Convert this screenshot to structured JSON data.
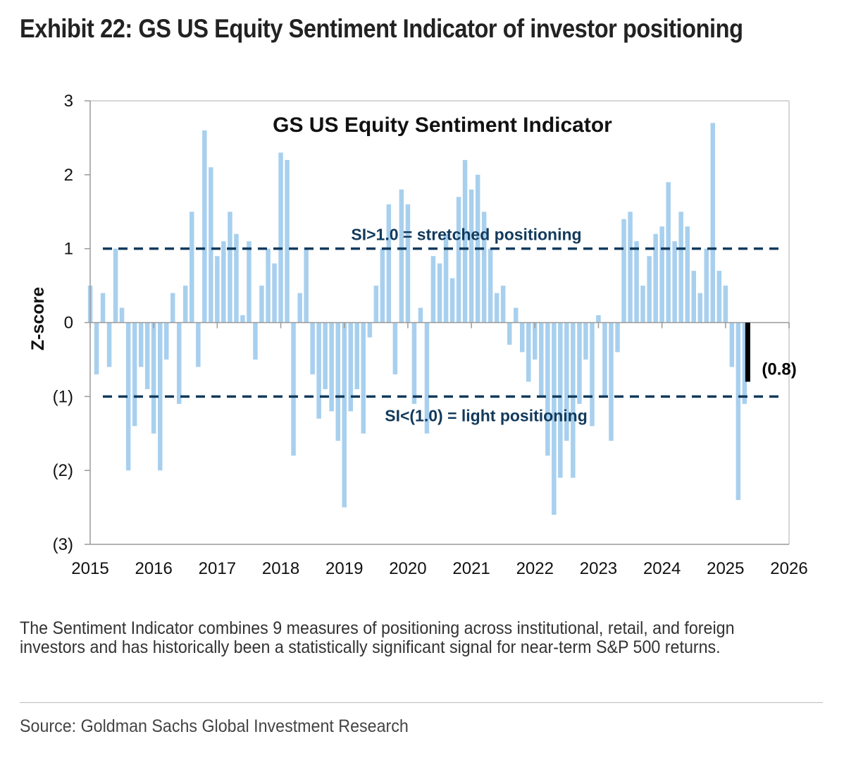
{
  "exhibit": {
    "title": "Exhibit 22: GS US Equity Sentiment Indicator of investor positioning",
    "footnote": "The Sentiment Indicator combines 9 measures of positioning across institutional, retail, and foreign investors and has historically been a statistically significant signal for near-term S&P 500 returns.",
    "source": "Source: Goldman Sachs Global Investment Research"
  },
  "chart_data": {
    "type": "bar",
    "title": "GS US Equity Sentiment Indicator",
    "xlabel": "",
    "ylabel": "Z-score",
    "xlim": [
      2015,
      2026
    ],
    "ylim": [
      -3,
      3
    ],
    "x_ticks": [
      "2015",
      "2016",
      "2017",
      "2018",
      "2019",
      "2020",
      "2021",
      "2022",
      "2023",
      "2024",
      "2025",
      "2026"
    ],
    "y_ticks": [
      {
        "value": 3,
        "label": "3"
      },
      {
        "value": 2,
        "label": "2"
      },
      {
        "value": 1,
        "label": "1"
      },
      {
        "value": 0,
        "label": "0"
      },
      {
        "value": -1,
        "label": "(1)"
      },
      {
        "value": -2,
        "label": "(2)"
      },
      {
        "value": -3,
        "label": "(3)"
      }
    ],
    "grid": false,
    "colors": {
      "bars": "#a8d0ee",
      "threshold": "#123a5c",
      "latest": "#000000",
      "axis": "#9a9a9a"
    },
    "series": {
      "x": [
        2015.0,
        2015.1,
        2015.2,
        2015.3,
        2015.4,
        2015.5,
        2015.6,
        2015.7,
        2015.8,
        2015.9,
        2016.0,
        2016.1,
        2016.2,
        2016.3,
        2016.4,
        2016.5,
        2016.6,
        2016.7,
        2016.8,
        2016.9,
        2017.0,
        2017.1,
        2017.2,
        2017.3,
        2017.4,
        2017.5,
        2017.6,
        2017.7,
        2017.8,
        2017.9,
        2018.0,
        2018.1,
        2018.2,
        2018.3,
        2018.4,
        2018.5,
        2018.6,
        2018.7,
        2018.8,
        2018.9,
        2019.0,
        2019.1,
        2019.2,
        2019.3,
        2019.4,
        2019.5,
        2019.6,
        2019.7,
        2019.8,
        2019.9,
        2020.0,
        2020.1,
        2020.2,
        2020.3,
        2020.4,
        2020.5,
        2020.6,
        2020.7,
        2020.8,
        2020.9,
        2021.0,
        2021.1,
        2021.2,
        2021.3,
        2021.4,
        2021.5,
        2021.6,
        2021.7,
        2021.8,
        2021.9,
        2022.0,
        2022.1,
        2022.2,
        2022.3,
        2022.4,
        2022.5,
        2022.6,
        2022.7,
        2022.8,
        2022.9,
        2023.0,
        2023.1,
        2023.2,
        2023.3,
        2023.4,
        2023.5,
        2023.6,
        2023.7,
        2023.8,
        2023.9,
        2024.0,
        2024.1,
        2024.2,
        2024.3,
        2024.4,
        2024.5,
        2024.6,
        2024.7,
        2024.8,
        2024.9,
        2025.0,
        2025.1,
        2025.2,
        2025.3
      ],
      "z": [
        0.5,
        -0.7,
        0.4,
        -0.6,
        1.0,
        0.2,
        -2.0,
        -1.4,
        -0.6,
        -0.9,
        -1.5,
        -2.0,
        -0.5,
        0.4,
        -1.1,
        0.5,
        1.5,
        -0.6,
        2.6,
        2.1,
        0.9,
        1.1,
        1.5,
        1.2,
        0.1,
        1.1,
        -0.5,
        0.5,
        1.0,
        0.8,
        2.3,
        2.2,
        -1.8,
        0.4,
        1.0,
        -0.7,
        -1.3,
        -0.9,
        -1.2,
        -1.6,
        -2.5,
        -1.2,
        -0.9,
        -1.5,
        -0.2,
        0.5,
        1.0,
        1.6,
        -0.7,
        1.8,
        1.6,
        -1.1,
        0.2,
        -1.5,
        0.9,
        0.8,
        1.2,
        0.6,
        1.7,
        2.2,
        1.8,
        2.0,
        1.5,
        1.0,
        0.4,
        0.5,
        -0.3,
        0.2,
        -0.4,
        -0.8,
        -0.5,
        -1.0,
        -1.8,
        -2.6,
        -2.1,
        -1.6,
        -2.1,
        -1.1,
        -0.5,
        -1.4,
        0.1,
        -1.0,
        -1.6,
        -0.4,
        1.4,
        1.5,
        1.1,
        0.5,
        0.9,
        1.2,
        1.3,
        1.9,
        1.1,
        1.5,
        1.3,
        0.7,
        0.4,
        1.0,
        2.7,
        0.7,
        0.5,
        -0.6,
        -2.4,
        -1.1
      ]
    },
    "latest": {
      "x": 2025.35,
      "value": -0.8,
      "label": "(0.8)"
    },
    "thresholds": [
      {
        "value": 1.0,
        "label": "SI>1.0 = stretched positioning"
      },
      {
        "value": -1.0,
        "label": "SI<(1.0) = light positioning"
      }
    ]
  }
}
